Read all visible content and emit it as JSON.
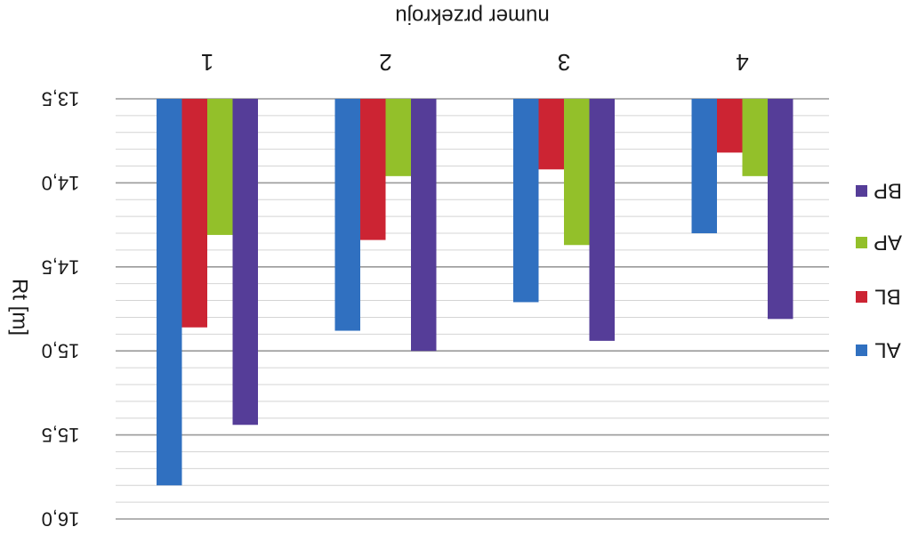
{
  "chart_data": {
    "type": "bar",
    "orientation": "vertical, image rotated 180 degrees",
    "xlabel": "numer przekroju",
    "ylabel": "Rt [m]",
    "categories": [
      "1",
      "2",
      "3",
      "4"
    ],
    "ylim": [
      13.5,
      16.0
    ],
    "y_ticks": [
      {
        "value": 13.5,
        "label": "13,5"
      },
      {
        "value": 14.0,
        "label": "14,0"
      },
      {
        "value": 14.5,
        "label": "14,5"
      },
      {
        "value": 15.0,
        "label": "15,0"
      },
      {
        "value": 15.5,
        "label": "15,5"
      },
      {
        "value": 16.0,
        "label": "16,0"
      }
    ],
    "grid": true,
    "legend_position": "right",
    "series": [
      {
        "name": "AL",
        "color": "#3070C0",
        "values": [
          15.8,
          14.88,
          14.71,
          14.3
        ]
      },
      {
        "name": "BL",
        "color": "#CC2433",
        "values": [
          14.86,
          14.34,
          13.92,
          13.82
        ]
      },
      {
        "name": "AP",
        "color": "#93C02A",
        "values": [
          14.31,
          13.96,
          14.37,
          13.96
        ]
      },
      {
        "name": "BP",
        "color": "#553D98",
        "values": [
          15.44,
          15.0,
          14.94,
          14.81
        ]
      }
    ],
    "legend_order": [
      "BP",
      "AP",
      "BL",
      "AL"
    ]
  }
}
